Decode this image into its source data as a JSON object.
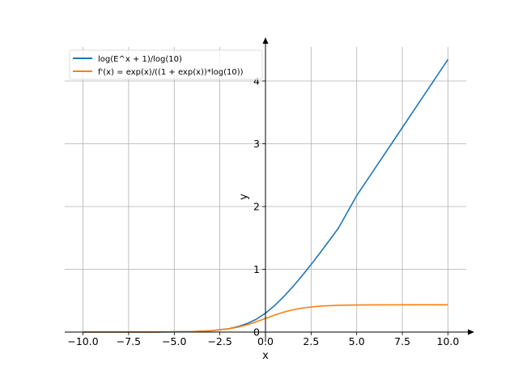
{
  "chart_data": {
    "type": "line",
    "title": "",
    "xlabel": "x",
    "ylabel": "y",
    "xlim": [
      -11.0,
      11.0
    ],
    "ylim": [
      0,
      4.35
    ],
    "grid": true,
    "legend_position": "top-left",
    "x_ticks": [
      -10.0,
      -7.5,
      -5.0,
      -2.5,
      0.0,
      2.5,
      5.0,
      7.5,
      10.0
    ],
    "x_tick_labels": [
      "−10.0",
      "−7.5",
      "−5.0",
      "−2.5",
      "0.0",
      "2.5",
      "5.0",
      "7.5",
      "10.0"
    ],
    "y_ticks": [
      0,
      1,
      2,
      3,
      4
    ],
    "y_tick_labels": [
      "0",
      "1",
      "2",
      "3",
      "4"
    ],
    "x": [
      -10,
      -8,
      -6,
      -4,
      -3,
      -2,
      -1.5,
      -1,
      -0.5,
      0,
      0.5,
      1,
      1.5,
      2,
      2.5,
      3,
      4,
      5,
      6,
      7,
      8,
      10
    ],
    "series": [
      {
        "name": "log(E^x + 1)/log(10)",
        "color": "#1f77b4",
        "values": [
          2e-05,
          0.00015,
          0.00107,
          0.00787,
          0.0207,
          0.055,
          0.0878,
          0.1363,
          0.2048,
          0.301,
          0.4219,
          0.5643,
          0.7231,
          0.8947,
          1.076,
          1.2642,
          1.6569,
          2.1745,
          2.6069,
          3.0404,
          3.4745,
          4.3429
        ]
      },
      {
        "name": "f'(x) = exp(x)/((1 + exp(x))*log(10))",
        "color": "#ff7f0e",
        "values": [
          2e-05,
          0.00015,
          0.00107,
          0.00786,
          0.0206,
          0.0521,
          0.0792,
          0.1168,
          0.164,
          0.2171,
          0.2703,
          0.3175,
          0.3551,
          0.3822,
          0.4001,
          0.4136,
          0.4263,
          0.4313,
          0.4332,
          0.4339,
          0.4341,
          0.4343
        ]
      }
    ]
  }
}
